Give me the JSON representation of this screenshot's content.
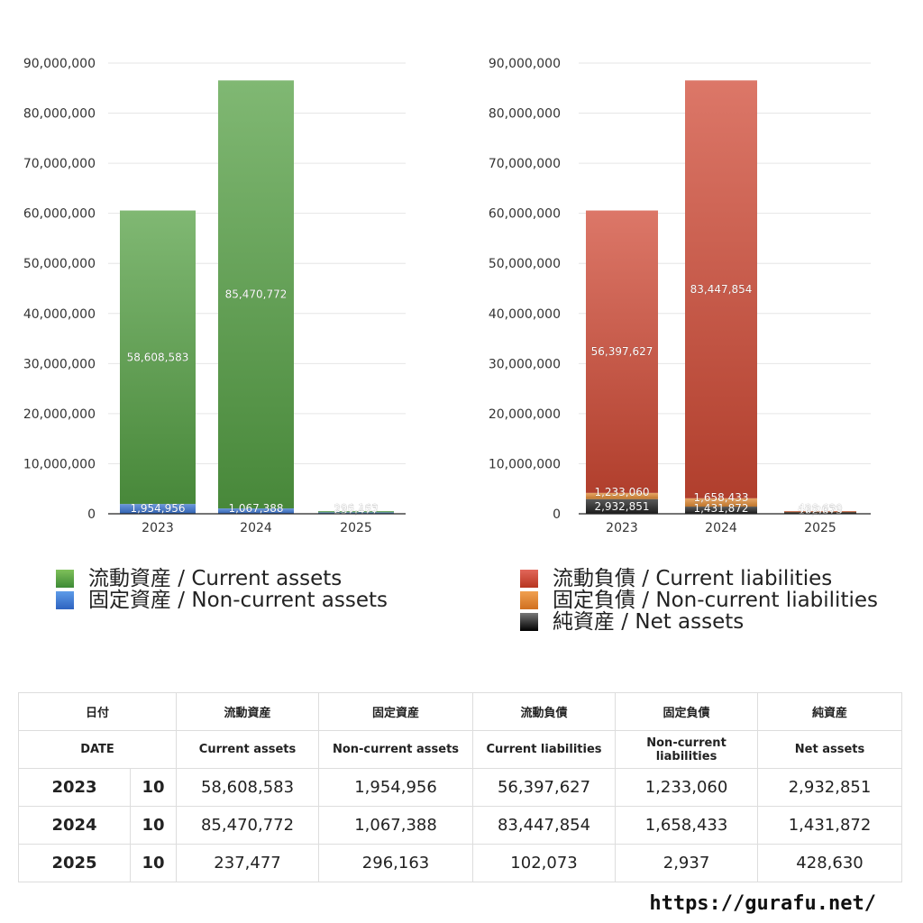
{
  "chart_data": [
    {
      "type": "bar",
      "stacked": true,
      "categories": [
        "2023",
        "2024",
        "2025"
      ],
      "ylim": [
        0,
        90000000
      ],
      "yticks": [
        "0",
        "10,000,000",
        "20,000,000",
        "30,000,000",
        "40,000,000",
        "50,000,000",
        "60,000,000",
        "70,000,000",
        "80,000,000",
        "90,000,000"
      ],
      "grid": true,
      "legend_position": "bottom",
      "series": [
        {
          "name": "固定資産 / Non-current assets",
          "values": [
            1954956,
            1067388,
            296163
          ],
          "labels": [
            "1,954,956",
            "1,067,388",
            "296,163"
          ],
          "color": "#3a74d0"
        },
        {
          "name": "流動資産 / Current assets",
          "values": [
            58608583,
            85470772,
            237477
          ],
          "labels": [
            "58,608,583",
            "85,470,772",
            "237,477"
          ],
          "color": "#55a044"
        }
      ]
    },
    {
      "type": "bar",
      "stacked": true,
      "categories": [
        "2023",
        "2024",
        "2025"
      ],
      "ylim": [
        0,
        90000000
      ],
      "yticks": [
        "0",
        "10,000,000",
        "20,000,000",
        "30,000,000",
        "40,000,000",
        "50,000,000",
        "60,000,000",
        "70,000,000",
        "80,000,000",
        "90,000,000"
      ],
      "grid": true,
      "legend_position": "bottom",
      "series": [
        {
          "name": "純資産 / Net assets",
          "values": [
            2932851,
            1431872,
            428630
          ],
          "labels": [
            "2,932,851",
            "1,431,872",
            "428,630"
          ],
          "color": "#222222"
        },
        {
          "name": "固定負債 / Non-current liabilities",
          "values": [
            1233060,
            1658433,
            2937
          ],
          "labels": [
            "1,233,060",
            "1,658,433",
            "2,937"
          ],
          "color": "#e08a34"
        },
        {
          "name": "流動負債 / Current liabilities",
          "values": [
            56397627,
            83447854,
            102073
          ],
          "labels": [
            "56,397,627",
            "83,447,854",
            "102,073"
          ],
          "color": "#d04a35"
        }
      ]
    }
  ],
  "legend_left": [
    {
      "label": "流動資産 / Current assets",
      "color": "#5aa84a"
    },
    {
      "label": "固定資産 / Non-current assets",
      "color": "#3a74d0"
    }
  ],
  "legend_right": [
    {
      "label": "流動負債 / Current liabilities",
      "color": "#d04a35"
    },
    {
      "label": "固定負債 / Non-current liabilities",
      "color": "#e08a34"
    },
    {
      "label": "純資産 / Net assets",
      "color": "#222222"
    }
  ],
  "table": {
    "header_jp": [
      "日付",
      "流動資産",
      "固定資産",
      "流動負債",
      "固定負債",
      "純資産"
    ],
    "header_en": [
      "DATE",
      "Current assets",
      "Non-current assets",
      "Current liabilities",
      "Non-current liabilities",
      "Net assets"
    ],
    "rows": [
      {
        "year": "2023",
        "month": "10",
        "values": [
          "58,608,583",
          "1,954,956",
          "56,397,627",
          "1,233,060",
          "2,932,851"
        ]
      },
      {
        "year": "2024",
        "month": "10",
        "values": [
          "85,470,772",
          "1,067,388",
          "83,447,854",
          "1,658,433",
          "1,431,872"
        ]
      },
      {
        "year": "2025",
        "month": "10",
        "values": [
          "237,477",
          "296,163",
          "102,073",
          "2,937",
          "428,630"
        ]
      }
    ]
  },
  "footer": {
    "url": "https://gurafu.net/"
  }
}
